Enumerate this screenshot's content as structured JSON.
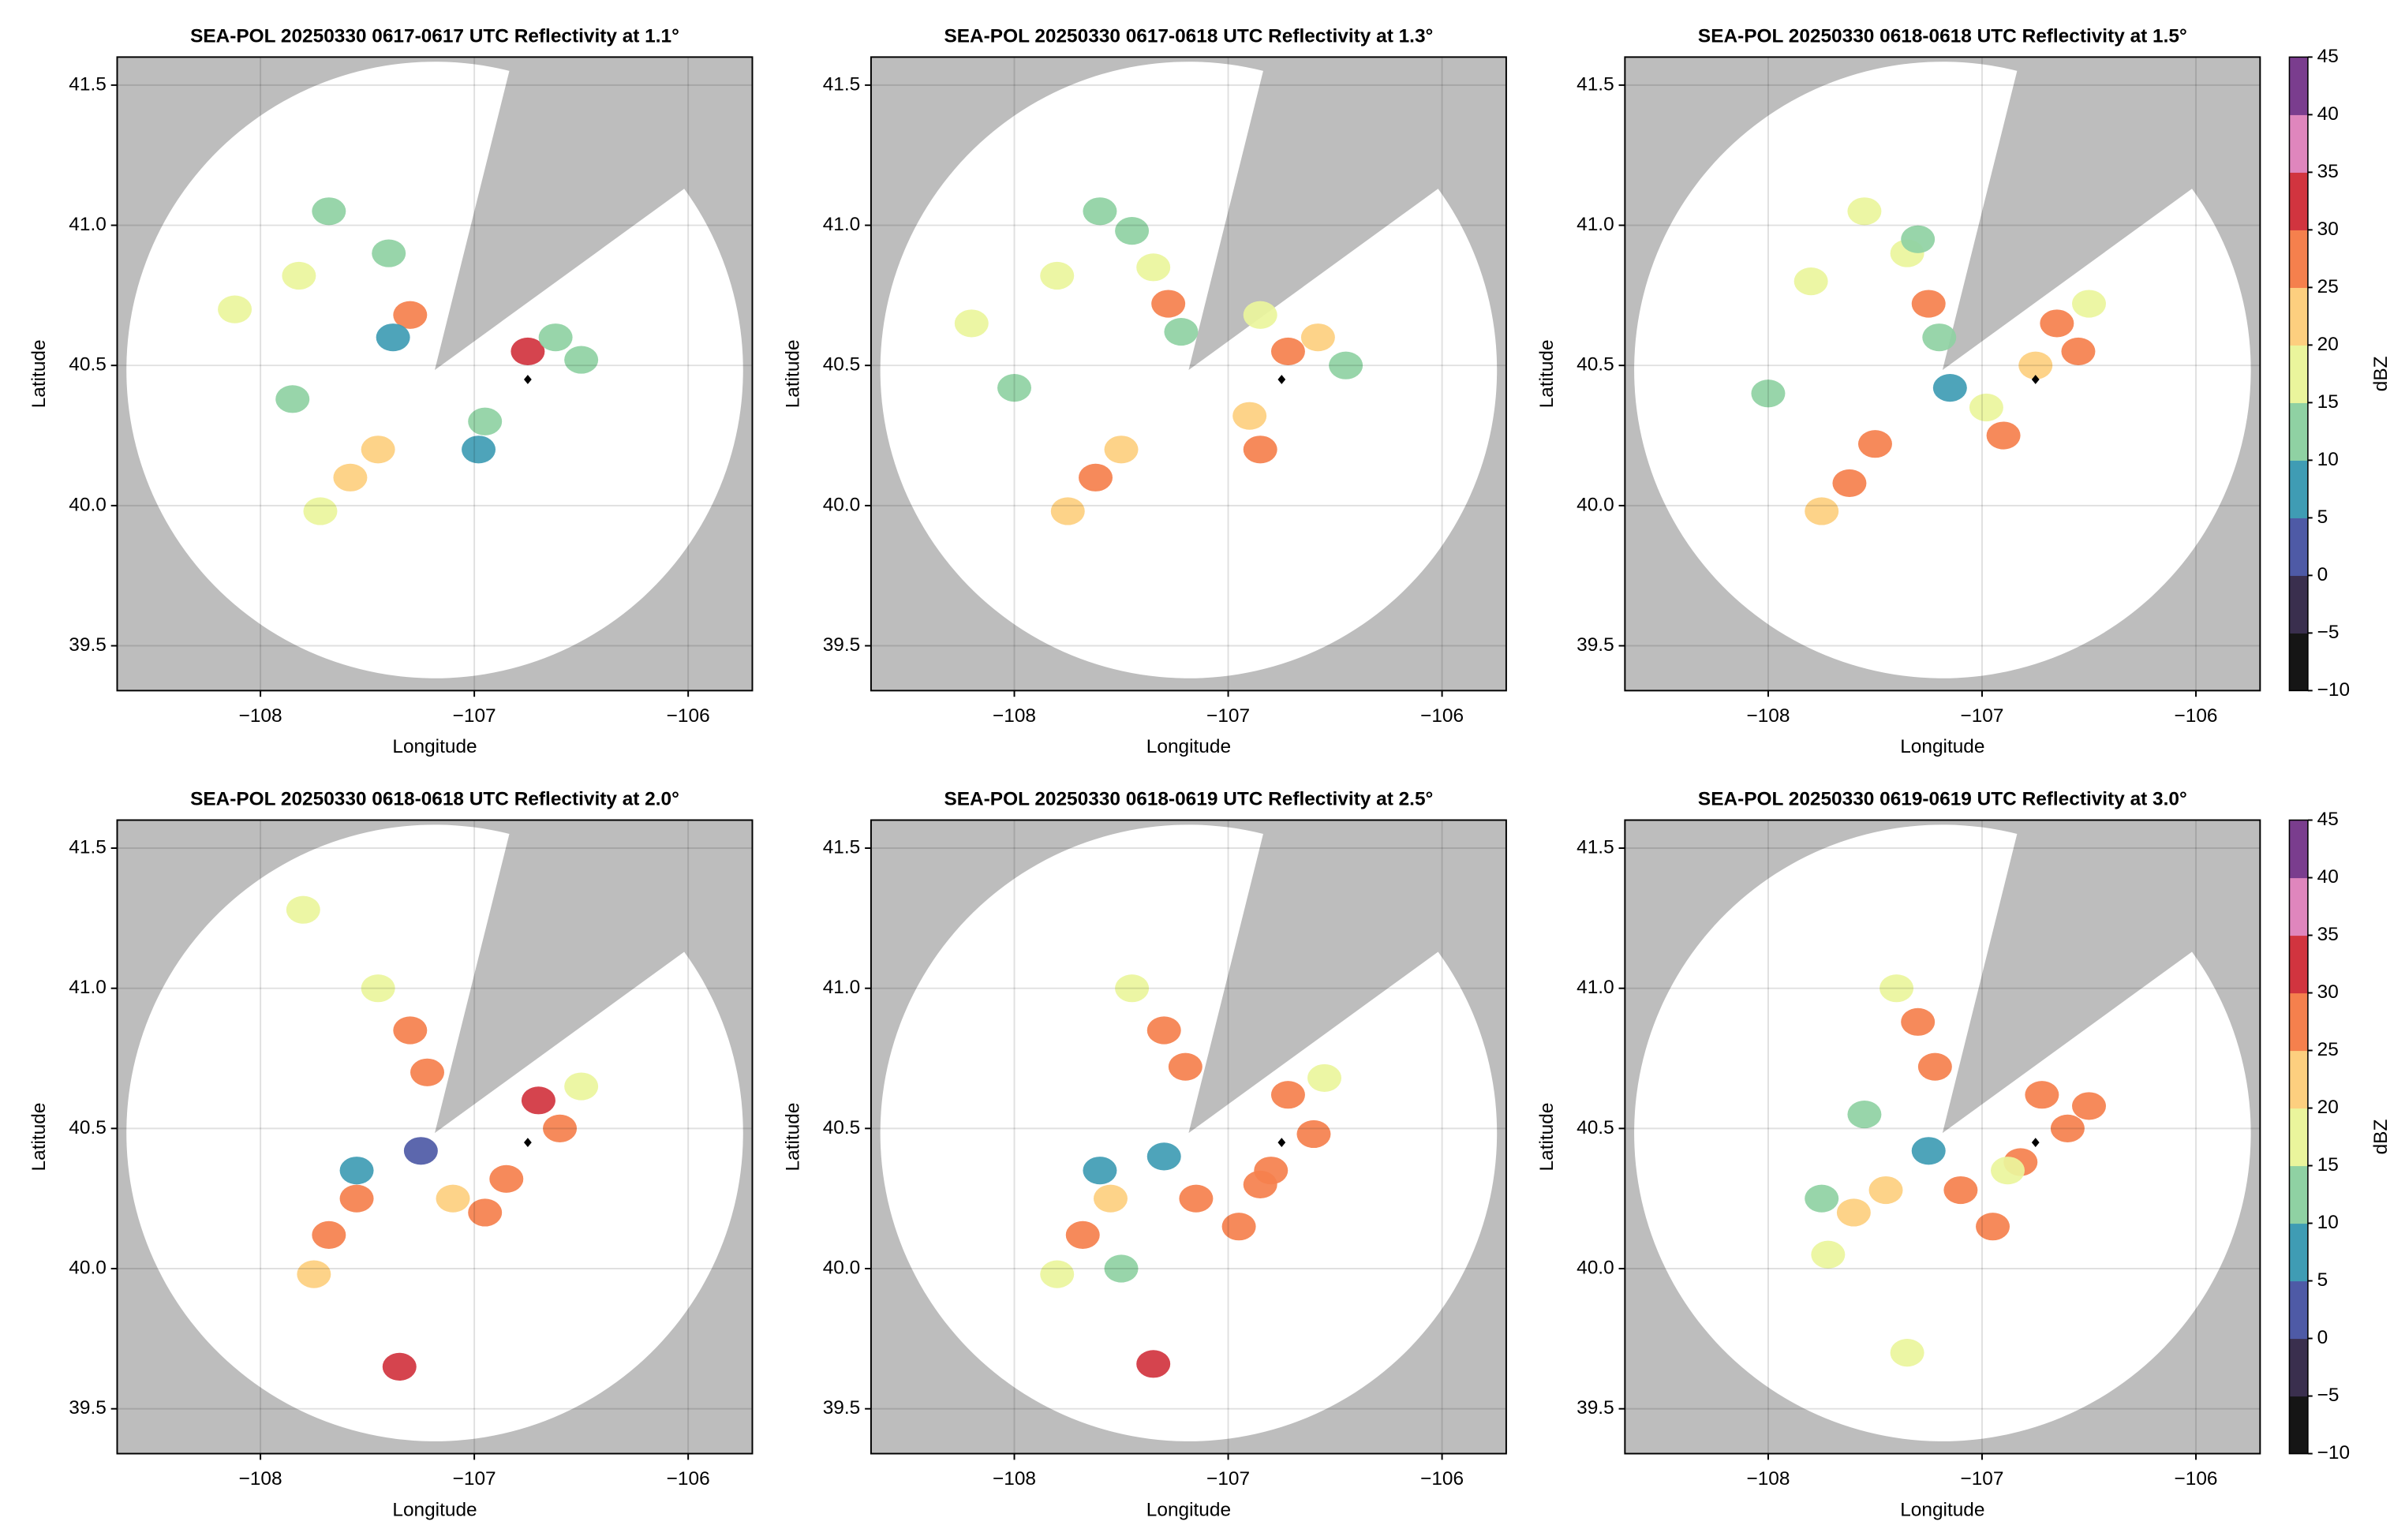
{
  "chart_data": [
    {
      "type": "radar",
      "title": "SEA-POL 20250330 0617-0617 UTC Reflectivity at 1.1°",
      "xlabel": "Longitude",
      "ylabel": "Latitude",
      "xlim": [
        -108.67,
        -105.7
      ],
      "ylim": [
        39.34,
        41.6
      ],
      "xticks": [
        {
          "value": -108,
          "label": "−108"
        },
        {
          "value": -107,
          "label": "−107"
        },
        {
          "value": -106,
          "label": "−106"
        }
      ],
      "yticks": [
        39.5,
        {
          "value": 40,
          "label": "40.0"
        },
        40.5,
        {
          "value": 41,
          "label": "41.0"
        },
        41.5
      ],
      "grid": true,
      "x": [
        -107.3,
        -107.38,
        -106.75,
        -106.62,
        -106.5,
        -107.45,
        -107.58,
        -107.72,
        -106.95,
        -106.98,
        -107.82,
        -108.12,
        -107.68,
        -107.85,
        -107.4
      ],
      "y": [
        40.68,
        40.6,
        40.55,
        40.6,
        40.52,
        40.2,
        40.1,
        39.98,
        40.3,
        40.2,
        40.82,
        40.7,
        41.05,
        40.38,
        40.9
      ],
      "values": [
        25,
        8,
        30,
        10,
        12,
        22,
        20,
        18,
        10,
        5,
        15,
        17,
        14,
        10,
        12
      ],
      "marker": {
        "x": -106.75,
        "y": 40.45
      }
    },
    {
      "type": "radar",
      "title": "SEA-POL 20250330 0617-0618 UTC Reflectivity at 1.3°",
      "xlabel": "Longitude",
      "ylabel": "Latitude",
      "xlim": [
        -108.67,
        -105.7
      ],
      "ylim": [
        39.34,
        41.6
      ],
      "xticks": [
        {
          "value": -108,
          "label": "−108"
        },
        {
          "value": -107,
          "label": "−107"
        },
        {
          "value": -106,
          "label": "−106"
        }
      ],
      "yticks": [
        39.5,
        {
          "value": 40,
          "label": "40.0"
        },
        40.5,
        {
          "value": 41,
          "label": "41.0"
        },
        41.5
      ],
      "grid": true,
      "x": [
        -107.28,
        -107.22,
        -107.35,
        -106.72,
        -106.58,
        -106.45,
        -106.85,
        -107.5,
        -107.62,
        -107.75,
        -106.9,
        -106.85,
        -107.8,
        -108.2,
        -107.6,
        -107.45,
        -108.0
      ],
      "y": [
        40.72,
        40.62,
        40.85,
        40.55,
        40.6,
        40.5,
        40.68,
        40.2,
        40.1,
        39.98,
        40.32,
        40.2,
        40.82,
        40.65,
        41.05,
        40.98,
        40.42
      ],
      "values": [
        25,
        12,
        15,
        28,
        20,
        12,
        15,
        23,
        25,
        22,
        20,
        28,
        15,
        15,
        14,
        12,
        13
      ],
      "marker": {
        "x": -106.75,
        "y": 40.45
      }
    },
    {
      "type": "radar",
      "title": "SEA-POL 20250330 0618-0618 UTC Reflectivity at 1.5°",
      "xlabel": "Longitude",
      "ylabel": "Latitude",
      "xlim": [
        -108.67,
        -105.7
      ],
      "ylim": [
        39.34,
        41.6
      ],
      "xticks": [
        {
          "value": -108,
          "label": "−108"
        },
        {
          "value": -107,
          "label": "−107"
        },
        {
          "value": -106,
          "label": "−106"
        }
      ],
      "yticks": [
        39.5,
        {
          "value": 40,
          "label": "40.0"
        },
        40.5,
        {
          "value": 41,
          "label": "41.0"
        },
        41.5
      ],
      "grid": true,
      "x": [
        -107.25,
        -107.2,
        -107.35,
        -106.65,
        -106.55,
        -106.5,
        -106.75,
        -107.5,
        -107.62,
        -107.75,
        -106.98,
        -106.9,
        -107.8,
        -107.55,
        -107.3,
        -108.0,
        -107.15
      ],
      "y": [
        40.72,
        40.6,
        40.9,
        40.65,
        40.55,
        40.72,
        40.5,
        40.22,
        40.08,
        39.98,
        40.35,
        40.25,
        40.8,
        41.05,
        40.95,
        40.4,
        40.42
      ],
      "values": [
        28,
        10,
        18,
        25,
        25,
        15,
        22,
        25,
        25,
        22,
        18,
        28,
        15,
        15,
        14,
        14,
        5
      ],
      "marker": {
        "x": -106.75,
        "y": 40.45
      },
      "colorbar": {
        "label": "dBZ",
        "ylim": [
          -10,
          45
        ],
        "yticks": [
          {
            "value": -10,
            "label": "−10"
          },
          {
            "value": -5,
            "label": "−5"
          },
          0,
          5,
          10,
          15,
          20,
          25,
          30,
          35,
          40,
          45
        ],
        "colors": [
          "#151515",
          "#3a2f4e",
          "#4e5aa6",
          "#3f9cb4",
          "#8fd1a3",
          "#eaf59c",
          "#fdcf7f",
          "#f5804d",
          "#d1343f",
          "#df86bd",
          "#7a3d8e"
        ]
      }
    },
    {
      "type": "radar",
      "title": "SEA-POL 20250330 0618-0618 UTC Reflectivity at 2.0°",
      "xlabel": "Longitude",
      "ylabel": "Latitude",
      "xlim": [
        -108.67,
        -105.7
      ],
      "ylim": [
        39.34,
        41.6
      ],
      "xticks": [
        {
          "value": -108,
          "label": "−108"
        },
        {
          "value": -107,
          "label": "−107"
        },
        {
          "value": -106,
          "label": "−106"
        }
      ],
      "yticks": [
        39.5,
        {
          "value": 40,
          "label": "40.0"
        },
        40.5,
        {
          "value": 41,
          "label": "41.0"
        },
        41.5
      ],
      "grid": true,
      "x": [
        -107.3,
        -107.22,
        -107.45,
        -106.7,
        -106.6,
        -106.5,
        -107.55,
        -107.68,
        -107.75,
        -107.1,
        -106.95,
        -106.85,
        -107.25,
        -107.35,
        -107.8,
        -107.55
      ],
      "y": [
        40.85,
        40.7,
        41.0,
        40.6,
        40.5,
        40.65,
        40.25,
        40.12,
        39.98,
        40.25,
        40.2,
        40.32,
        40.42,
        39.65,
        41.28,
        40.35
      ],
      "values": [
        25,
        28,
        15,
        30,
        28,
        15,
        25,
        25,
        22,
        20,
        28,
        25,
        3,
        30,
        15,
        5
      ],
      "marker": {
        "x": -106.75,
        "y": 40.45
      }
    },
    {
      "type": "radar",
      "title": "SEA-POL 20250330 0618-0619 UTC Reflectivity at 2.5°",
      "xlabel": "Longitude",
      "ylabel": "Latitude",
      "xlim": [
        -108.67,
        -105.7
      ],
      "ylim": [
        39.34,
        41.6
      ],
      "xticks": [
        {
          "value": -108,
          "label": "−108"
        },
        {
          "value": -107,
          "label": "−107"
        },
        {
          "value": -106,
          "label": "−106"
        }
      ],
      "yticks": [
        39.5,
        {
          "value": 40,
          "label": "40.0"
        },
        40.5,
        {
          "value": 41,
          "label": "41.0"
        },
        41.5
      ],
      "grid": true,
      "x": [
        -107.3,
        -107.2,
        -107.45,
        -106.72,
        -106.6,
        -106.55,
        -106.8,
        -107.55,
        -107.68,
        -107.8,
        -107.15,
        -106.95,
        -106.85,
        -107.3,
        -107.35,
        -107.6,
        -107.5
      ],
      "y": [
        40.85,
        40.72,
        41.0,
        40.62,
        40.48,
        40.68,
        40.35,
        40.25,
        40.12,
        39.98,
        40.25,
        40.15,
        40.3,
        40.4,
        39.66,
        40.35,
        40.0
      ],
      "values": [
        25,
        28,
        15,
        28,
        28,
        18,
        25,
        22,
        25,
        18,
        28,
        25,
        25,
        5,
        30,
        5,
        10
      ],
      "marker": {
        "x": -106.75,
        "y": 40.45
      }
    },
    {
      "type": "radar",
      "title": "SEA-POL 20250330 0619-0619 UTC Reflectivity at 3.0°",
      "xlabel": "Longitude",
      "ylabel": "Latitude",
      "xlim": [
        -108.67,
        -105.7
      ],
      "ylim": [
        39.34,
        41.6
      ],
      "xticks": [
        {
          "value": -108,
          "label": "−108"
        },
        {
          "value": -107,
          "label": "−107"
        },
        {
          "value": -106,
          "label": "−106"
        }
      ],
      "yticks": [
        39.5,
        {
          "value": 40,
          "label": "40.0"
        },
        40.5,
        {
          "value": 41,
          "label": "41.0"
        },
        41.5
      ],
      "grid": true,
      "x": [
        -107.3,
        -107.22,
        -107.4,
        -106.72,
        -106.6,
        -106.5,
        -106.82,
        -107.45,
        -107.6,
        -107.72,
        -107.1,
        -106.95,
        -106.88,
        -107.25,
        -107.75,
        -107.35,
        -107.55
      ],
      "y": [
        40.88,
        40.72,
        41.0,
        40.62,
        40.5,
        40.58,
        40.38,
        40.28,
        40.2,
        40.05,
        40.28,
        40.15,
        40.35,
        40.42,
        40.25,
        39.7,
        40.55
      ],
      "values": [
        25,
        28,
        15,
        25,
        28,
        25,
        28,
        22,
        22,
        15,
        25,
        25,
        18,
        5,
        12,
        15,
        12
      ],
      "marker": {
        "x": -106.75,
        "y": 40.45
      },
      "colorbar": {
        "label": "dBZ",
        "ylim": [
          -10,
          45
        ],
        "yticks": [
          {
            "value": -10,
            "label": "−10"
          },
          {
            "value": -5,
            "label": "−5"
          },
          0,
          5,
          10,
          15,
          20,
          25,
          30,
          35,
          40,
          45
        ],
        "colors": [
          "#151515",
          "#3a2f4e",
          "#4e5aa6",
          "#3f9cb4",
          "#8fd1a3",
          "#eaf59c",
          "#fdcf7f",
          "#f5804d",
          "#d1343f",
          "#df86bd",
          "#7a3d8e"
        ]
      }
    }
  ]
}
